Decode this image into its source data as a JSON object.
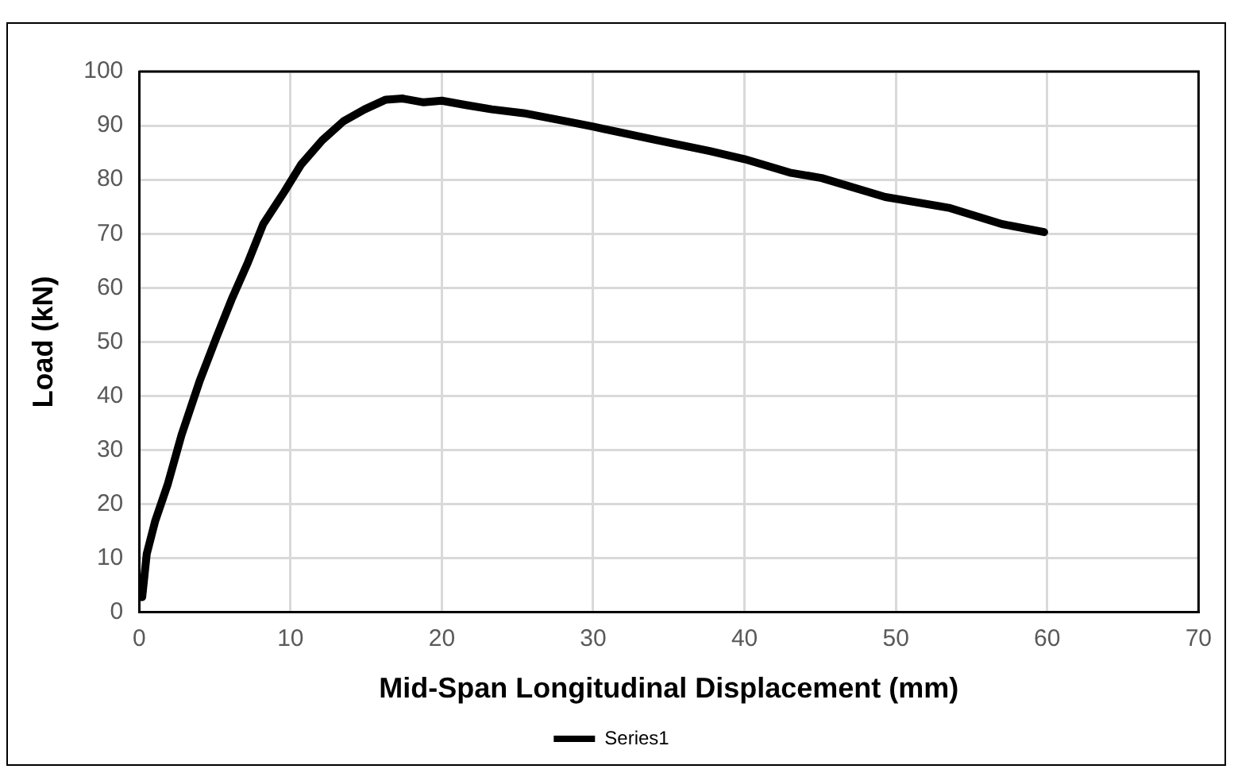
{
  "chart_data": {
    "type": "line",
    "xlabel": "Mid-Span Longitudinal Displacement (mm)",
    "ylabel": "Load (kN)",
    "xlim": [
      0,
      70
    ],
    "xticks": [
      0,
      10,
      20,
      30,
      40,
      50,
      60,
      70
    ],
    "ylim": [
      0,
      100
    ],
    "yticks": [
      0,
      10,
      20,
      30,
      40,
      50,
      60,
      70,
      80,
      90,
      100
    ],
    "grid": true,
    "legend": "bottom",
    "marker": "none",
    "line_style": "solid",
    "series": [
      {
        "name": "Series1",
        "color": "#000000",
        "x": [
          0.2,
          0.5,
          1.05,
          1.9,
          2.8,
          4.0,
          5.1,
          6.1,
          7.2,
          8.2,
          9.6,
          10.7,
          12.1,
          13.5,
          14.9,
          16.3,
          17.4,
          18.8,
          20,
          21.6,
          23.3,
          25.4,
          28.2,
          30,
          34.2,
          37.7,
          40,
          43,
          45.1,
          49.3,
          53.5,
          57,
          59.8
        ],
        "values": [
          2.8,
          10.8,
          16.8,
          23.8,
          32.8,
          42.8,
          50.8,
          57.8,
          64.8,
          71.8,
          77.8,
          82.8,
          87.3,
          90.8,
          93,
          94.8,
          95,
          94.3,
          94.6,
          93.8,
          93,
          92.3,
          90.8,
          89.8,
          87.3,
          85.3,
          83.8,
          81.3,
          80.3,
          76.8,
          74.8,
          71.8,
          70.3
        ]
      }
    ]
  }
}
